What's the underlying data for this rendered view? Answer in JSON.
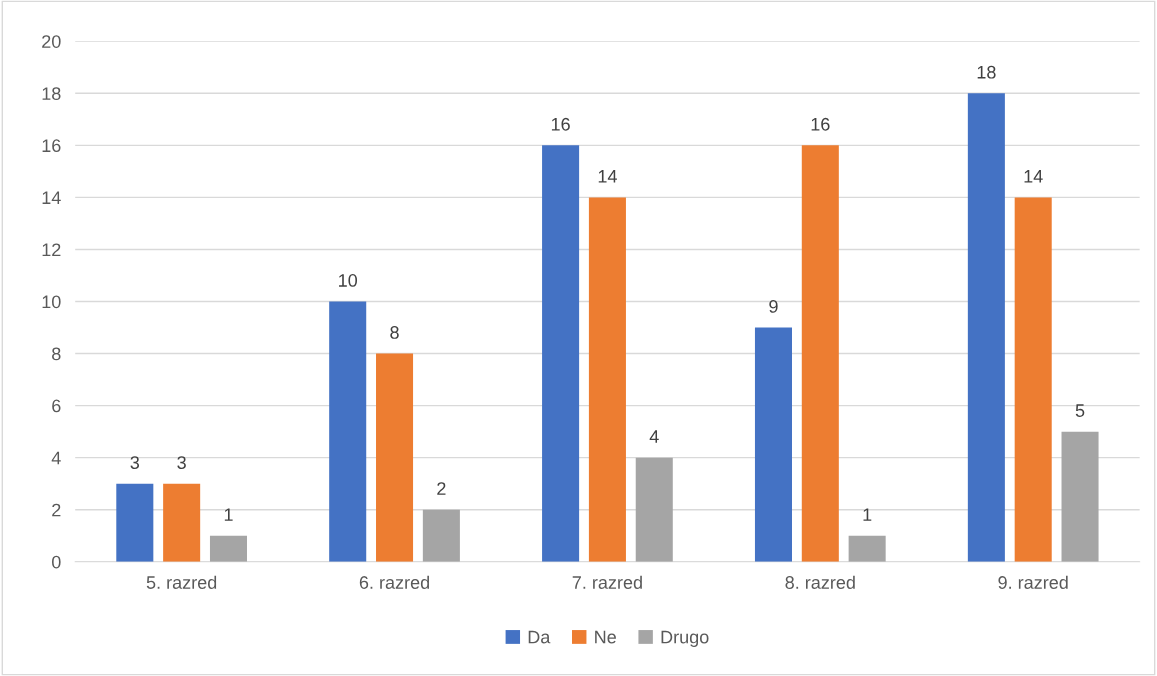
{
  "chart_data": {
    "type": "bar",
    "categories": [
      "5. razred",
      "6. razred",
      "7. razred",
      "8. razred",
      "9. razred"
    ],
    "series": [
      {
        "name": "Da",
        "color": "#4472c4",
        "values": [
          3,
          10,
          16,
          9,
          18
        ]
      },
      {
        "name": "Ne",
        "color": "#ed7d31",
        "values": [
          3,
          8,
          14,
          16,
          14
        ]
      },
      {
        "name": "Drugo",
        "color": "#a5a5a5",
        "values": [
          1,
          2,
          4,
          1,
          5
        ]
      }
    ],
    "ylim": [
      0,
      20
    ],
    "yticks": [
      0,
      2,
      4,
      6,
      8,
      10,
      12,
      14,
      16,
      18,
      20
    ],
    "grid": "y",
    "legend": "bottom",
    "data_labels": true
  }
}
